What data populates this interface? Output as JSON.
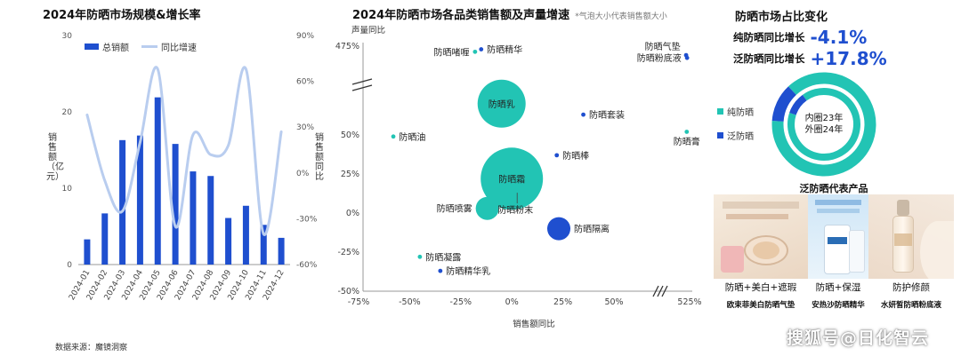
{
  "colors": {
    "bar": "#1f4fcf",
    "line": "#b9cdef",
    "teal": "#22c4b4",
    "blue": "#1f4fcf"
  },
  "left": {
    "title": "2024年防晒市场规模&增长率",
    "ylabel_left": "销售额（亿元）",
    "ylabel_right": "销售额同比",
    "legend": [
      "总销额",
      "同比增速"
    ]
  },
  "middle": {
    "title": "2024年防晒市场各品类销售额及声量增速",
    "note": "*气泡大小代表销售额大小",
    "ylabel": "声量同比",
    "xlabel": "销售额同比"
  },
  "right": {
    "title": "防晒市场占比变化",
    "kpis": [
      {
        "label": "纯防晒同比增长",
        "value": "-4.1%"
      },
      {
        "label": "泛防晒同比增长",
        "value": "+17.8%"
      }
    ],
    "legend": [
      "纯防晒",
      "泛防晒"
    ],
    "donut_center": [
      "内圈23年",
      "外圈24年"
    ],
    "products_title": "泛防晒代表产品",
    "products": [
      {
        "caption": "防晒+美白+遮瑕",
        "name": "欧束菲美白防晒气垫"
      },
      {
        "caption": "防晒+保湿",
        "name": "安热沙防晒精华"
      },
      {
        "caption": "防护修颜",
        "name": "水妍皙防晒粉底液"
      }
    ]
  },
  "source": "数据来源：魔镜洞察",
  "watermark": "搜狐号@日化智云",
  "chart_data": [
    {
      "type": "bar",
      "title": "2024年防晒市场规模&增长率",
      "categories": [
        "2024-01",
        "2024-02",
        "2024-03",
        "2024-04",
        "2024-05",
        "2024-06",
        "2024-07",
        "2024-08",
        "2024-09",
        "2024-10",
        "2024-11",
        "2024-12"
      ],
      "series": [
        {
          "name": "总销额",
          "type": "bar",
          "axis": "left",
          "values": [
            3.3,
            6.7,
            16.3,
            16.9,
            21.9,
            15.8,
            12.2,
            11.6,
            6.1,
            7.7,
            5.2,
            3.5
          ]
        },
        {
          "name": "同比增速",
          "type": "line",
          "axis": "right",
          "values": [
            38,
            -5,
            -25,
            20,
            68,
            -35,
            25,
            12,
            18,
            68,
            -40,
            27
          ]
        }
      ],
      "ylabel": "销售额（亿元）",
      "y2label": "销售额同比",
      "ylim": [
        0,
        30
      ],
      "yticks": [
        "0",
        "10",
        "20",
        "30"
      ],
      "y2lim": [
        -60,
        90
      ],
      "y2ticks": [
        "-60%",
        "-30%",
        "0%",
        "30%",
        "60%",
        "90%"
      ]
    },
    {
      "type": "scatter",
      "title": "2024年防晒市场各品类销售额及声量增速",
      "xlabel": "销售额同比",
      "ylabel": "声量同比",
      "xticks": [
        "-75%",
        "-50%",
        "-25%",
        "0%",
        "25%",
        "50%",
        "525%"
      ],
      "yticks": [
        "-50%",
        "-25%",
        "0%",
        "25%",
        "50%",
        "475%"
      ],
      "axis_breaks": [
        "x",
        "y"
      ],
      "points": [
        {
          "name": "防晒精华",
          "x": -15,
          "y": 460,
          "size": "xs",
          "color": "#1f4fcf"
        },
        {
          "name": "防晒啫喱",
          "x": -18,
          "y": 448,
          "size": "xs",
          "color": "#22c4b4"
        },
        {
          "name": "防晒乳",
          "x": -5,
          "y": 70,
          "size": "l",
          "color": "#22c4b4"
        },
        {
          "name": "防晒气垫",
          "x": 503,
          "y": 432,
          "size": "xs",
          "color": "#1f4fcf"
        },
        {
          "name": "防晒粉底液",
          "x": 509,
          "y": 419,
          "size": "xs",
          "color": "#1f4fcf"
        },
        {
          "name": "防晒套装",
          "x": 35,
          "y": 63,
          "size": "xs",
          "color": "#1f4fcf"
        },
        {
          "name": "防晒膏",
          "x": 507,
          "y": 52,
          "size": "xs",
          "color": "#22c4b4"
        },
        {
          "name": "防晒油",
          "x": -58,
          "y": 49,
          "size": "xs",
          "color": "#22c4b4"
        },
        {
          "name": "防晒棒",
          "x": 22,
          "y": 37,
          "size": "xs",
          "color": "#1f4fcf"
        },
        {
          "name": "防晒霜",
          "x": 0,
          "y": 22,
          "size": "xl",
          "color": "#22c4b4"
        },
        {
          "name": "防晒喷雾",
          "x": -12,
          "y": 3,
          "size": "s",
          "color": "#22c4b4"
        },
        {
          "name": "防晒粉末",
          "x": 0,
          "y": 13,
          "size": "xs",
          "color": "#22c4b4"
        },
        {
          "name": "防晒隔离",
          "x": 23,
          "y": -10,
          "size": "s",
          "color": "#1f4fcf"
        },
        {
          "name": "防晒凝露",
          "x": -45,
          "y": -28,
          "size": "xs",
          "color": "#22c4b4"
        },
        {
          "name": "防晒精华乳",
          "x": -35,
          "y": -37,
          "size": "xs",
          "color": "#1f4fcf"
        }
      ]
    },
    {
      "type": "pie",
      "title": "防晒市场占比变化",
      "labels": [
        "纯防晒",
        "泛防晒"
      ],
      "series": [
        {
          "name": "内圈23年",
          "values": [
            90,
            10
          ]
        },
        {
          "name": "外圈24年",
          "values": [
            88,
            12
          ]
        }
      ]
    }
  ]
}
